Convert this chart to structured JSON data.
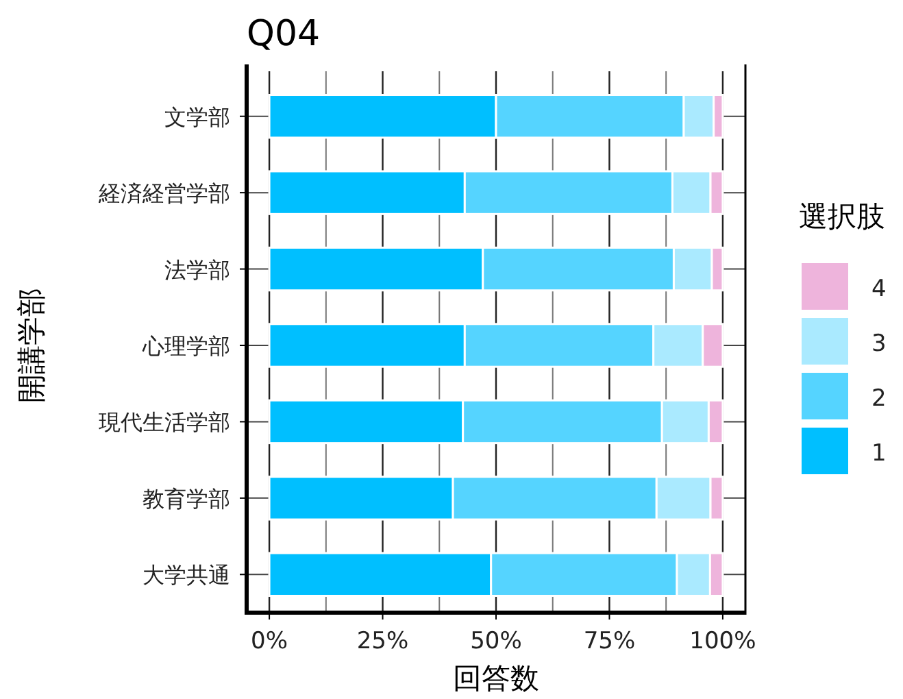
{
  "chart_data": {
    "type": "bar",
    "orientation": "horizontal",
    "stacked": true,
    "title": "Q04",
    "xlabel": "回答数",
    "ylabel": "開講学部",
    "legend_title": "選択肢",
    "categories": [
      "文学部",
      "経済経営学部",
      "法学部",
      "心理学部",
      "現代生活学部",
      "教育学部",
      "大学共通"
    ],
    "series": [
      {
        "name": "1",
        "color": "#00bfff",
        "values": [
          50.0,
          43.1,
          47.1,
          43.1,
          42.7,
          40.5,
          48.9
        ]
      },
      {
        "name": "2",
        "color": "#55d4ff",
        "values": [
          41.4,
          45.8,
          42.1,
          41.6,
          43.9,
          44.9,
          41.0
        ]
      },
      {
        "name": "3",
        "color": "#aaeaff",
        "values": [
          6.6,
          8.4,
          8.4,
          10.9,
          10.3,
          11.9,
          7.3
        ]
      },
      {
        "name": "4",
        "color": "#eeb4dc",
        "values": [
          2.0,
          2.7,
          2.4,
          4.4,
          3.1,
          2.7,
          2.8
        ]
      }
    ],
    "xlim": [
      -5,
      105
    ],
    "xticks": [
      {
        "value": 0,
        "label": "0%"
      },
      {
        "value": 25,
        "label": "25%"
      },
      {
        "value": 50,
        "label": "50%"
      },
      {
        "value": 75,
        "label": "75%"
      },
      {
        "value": 100,
        "label": "100%"
      }
    ],
    "grid": true,
    "legend": "right"
  }
}
